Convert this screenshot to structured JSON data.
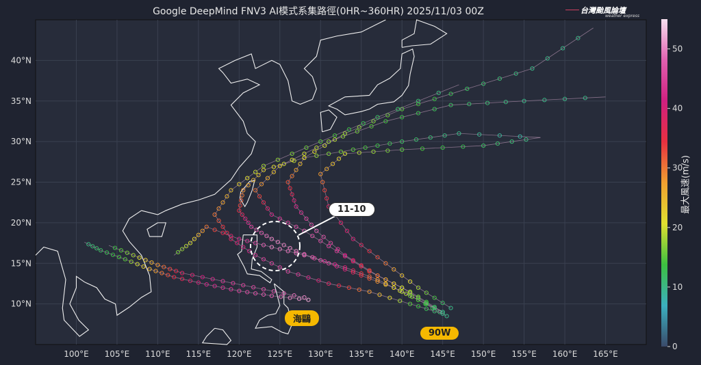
{
  "title": "Google DeepMind FNV3 AI模式系集路徑(0HR~360HR) 2025/11/03 00Z",
  "logo": {
    "main": "台灣颱風論壇",
    "sub": "weather express"
  },
  "colorbar": {
    "label": "最大風速(m/s)",
    "ticks": [
      "0",
      "10",
      "20",
      "30",
      "40",
      "50"
    ],
    "range": [
      0,
      55
    ],
    "colormap": [
      "#3a4a6a",
      "#3bb0c0",
      "#3cc040",
      "#e0e030",
      "#f0a030",
      "#e83040",
      "#d02080",
      "#e060b0",
      "#f8e0f0"
    ]
  },
  "map": {
    "lon_range": [
      95,
      170
    ],
    "lat_range": [
      5,
      45
    ],
    "grid": true,
    "x_ticks": [
      "100°E",
      "105°E",
      "110°E",
      "115°E",
      "120°E",
      "125°E",
      "130°E",
      "135°E",
      "140°E",
      "145°E",
      "150°E",
      "155°E",
      "160°E",
      "165°E"
    ],
    "y_ticks": [
      "10°N",
      "15°N",
      "20°N",
      "25°N",
      "30°N",
      "35°N",
      "40°N"
    ]
  },
  "annotations": {
    "date_callout": "11-10",
    "storm1": "海鷗",
    "storm2": "90W"
  },
  "colors": {
    "background": "#1f2330",
    "plot": "#272c3a",
    "label_fill": "#f5b800",
    "callout_fill": "#ffffff"
  },
  "tracks": [
    {
      "storm": "海鷗",
      "points": [
        [
          128.5,
          10.5,
          52
        ],
        [
          124,
          11,
          48
        ],
        [
          120,
          11.6,
          45
        ],
        [
          116,
          12.4,
          42
        ],
        [
          112,
          13.3,
          35
        ],
        [
          109,
          14.3,
          25
        ],
        [
          106,
          15.5,
          15
        ],
        [
          103,
          16.6,
          12
        ],
        [
          101,
          17.6,
          10
        ]
      ]
    },
    {
      "storm": "海鷗",
      "points": [
        [
          128,
          10.8,
          50
        ],
        [
          123,
          11.8,
          46
        ],
        [
          118,
          12.8,
          44
        ],
        [
          113,
          13.8,
          38
        ],
        [
          110,
          14.8,
          28
        ],
        [
          107,
          16,
          18
        ],
        [
          104,
          17.2,
          12
        ]
      ]
    },
    {
      "storm": "90W",
      "points": [
        [
          145.5,
          8.5,
          10
        ],
        [
          142,
          10.5,
          15
        ],
        [
          139,
          12,
          22
        ],
        [
          135,
          13.5,
          35
        ],
        [
          131,
          15,
          45
        ],
        [
          127,
          16.5,
          50
        ],
        [
          124,
          18,
          50
        ],
        [
          121.5,
          19.5,
          45
        ],
        [
          120,
          21.5,
          35
        ],
        [
          120.5,
          24,
          28
        ],
        [
          123,
          26.5,
          22
        ],
        [
          128,
          28,
          18
        ],
        [
          134,
          29,
          15
        ],
        [
          140,
          30,
          12
        ],
        [
          147,
          31,
          10
        ],
        [
          157,
          30.5,
          8
        ]
      ]
    },
    {
      "storm": "90W",
      "points": [
        [
          145,
          9,
          10
        ],
        [
          141,
          11.5,
          18
        ],
        [
          137,
          13.5,
          30
        ],
        [
          133,
          16,
          42
        ],
        [
          129.5,
          19,
          48
        ],
        [
          127,
          22,
          42
        ],
        [
          126,
          25,
          32
        ],
        [
          128,
          28,
          22
        ],
        [
          133,
          31,
          18
        ],
        [
          140,
          34,
          15
        ],
        [
          148,
          36.5,
          12
        ],
        [
          156,
          39,
          10
        ],
        [
          163.5,
          44,
          10
        ]
      ]
    },
    {
      "storm": "90W",
      "points": [
        [
          144,
          9.5,
          12
        ],
        [
          140,
          12,
          20
        ],
        [
          136,
          14,
          34
        ],
        [
          132,
          16.5,
          44
        ],
        [
          128,
          19,
          48
        ],
        [
          124,
          21,
          42
        ],
        [
          122,
          24,
          30
        ],
        [
          125,
          27,
          22
        ],
        [
          131,
          30,
          18
        ],
        [
          138,
          32.5,
          14
        ],
        [
          146,
          34.5,
          12
        ],
        [
          155,
          35,
          10
        ],
        [
          165,
          35.5,
          10
        ]
      ]
    },
    {
      "storm": "90W",
      "points": [
        [
          145,
          9,
          10
        ],
        [
          141,
          11,
          16
        ],
        [
          137,
          13,
          28
        ],
        [
          133,
          14.5,
          40
        ],
        [
          128,
          16,
          48
        ],
        [
          124,
          17,
          50
        ],
        [
          120,
          18,
          42
        ],
        [
          116,
          19.5,
          30
        ],
        [
          114,
          17.5,
          20
        ],
        [
          112,
          16,
          15
        ]
      ]
    },
    {
      "storm": "90W",
      "points": [
        [
          146,
          9.5,
          10
        ],
        [
          142,
          12,
          18
        ],
        [
          138,
          15,
          30
        ],
        [
          134,
          18,
          40
        ],
        [
          131,
          22,
          38
        ],
        [
          130,
          26,
          28
        ],
        [
          133,
          28.5,
          20
        ],
        [
          140,
          29,
          15
        ],
        [
          150,
          29.5,
          12
        ],
        [
          157,
          30.5,
          10
        ]
      ]
    },
    {
      "storm": "90W",
      "points": [
        [
          145,
          8.8,
          10
        ],
        [
          141,
          10,
          15
        ],
        [
          136,
          11.5,
          28
        ],
        [
          131,
          12.5,
          38
        ],
        [
          126,
          14,
          46
        ],
        [
          122,
          16,
          44
        ],
        [
          119,
          18,
          38
        ],
        [
          117,
          21,
          30
        ],
        [
          119,
          24,
          24
        ],
        [
          123,
          27,
          18
        ],
        [
          130,
          30,
          15
        ],
        [
          137,
          33,
          12
        ],
        [
          147,
          37,
          10
        ]
      ]
    }
  ]
}
